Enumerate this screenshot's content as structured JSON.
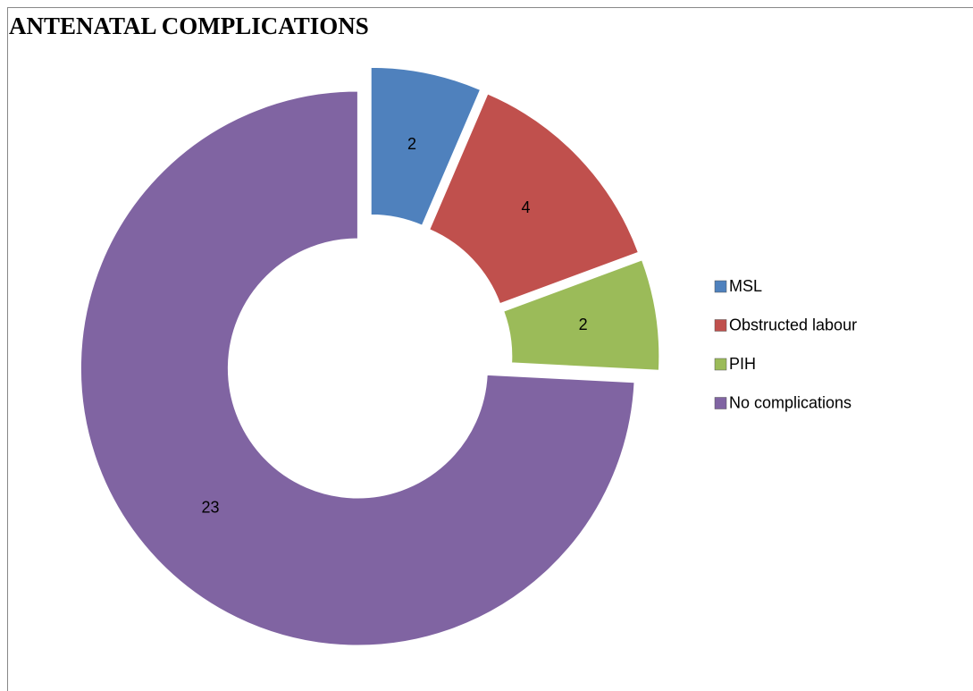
{
  "chart_data": {
    "type": "donut",
    "title": "ANTENATAL COMPLICATIONS",
    "categories": [
      "MSL",
      "Obstructed labour",
      "PIH",
      "No complications"
    ],
    "values": [
      2,
      4,
      2,
      23
    ],
    "colors": [
      "#4f81bd",
      "#c0504d",
      "#9bbb59",
      "#8064a2"
    ],
    "legend": "right"
  }
}
